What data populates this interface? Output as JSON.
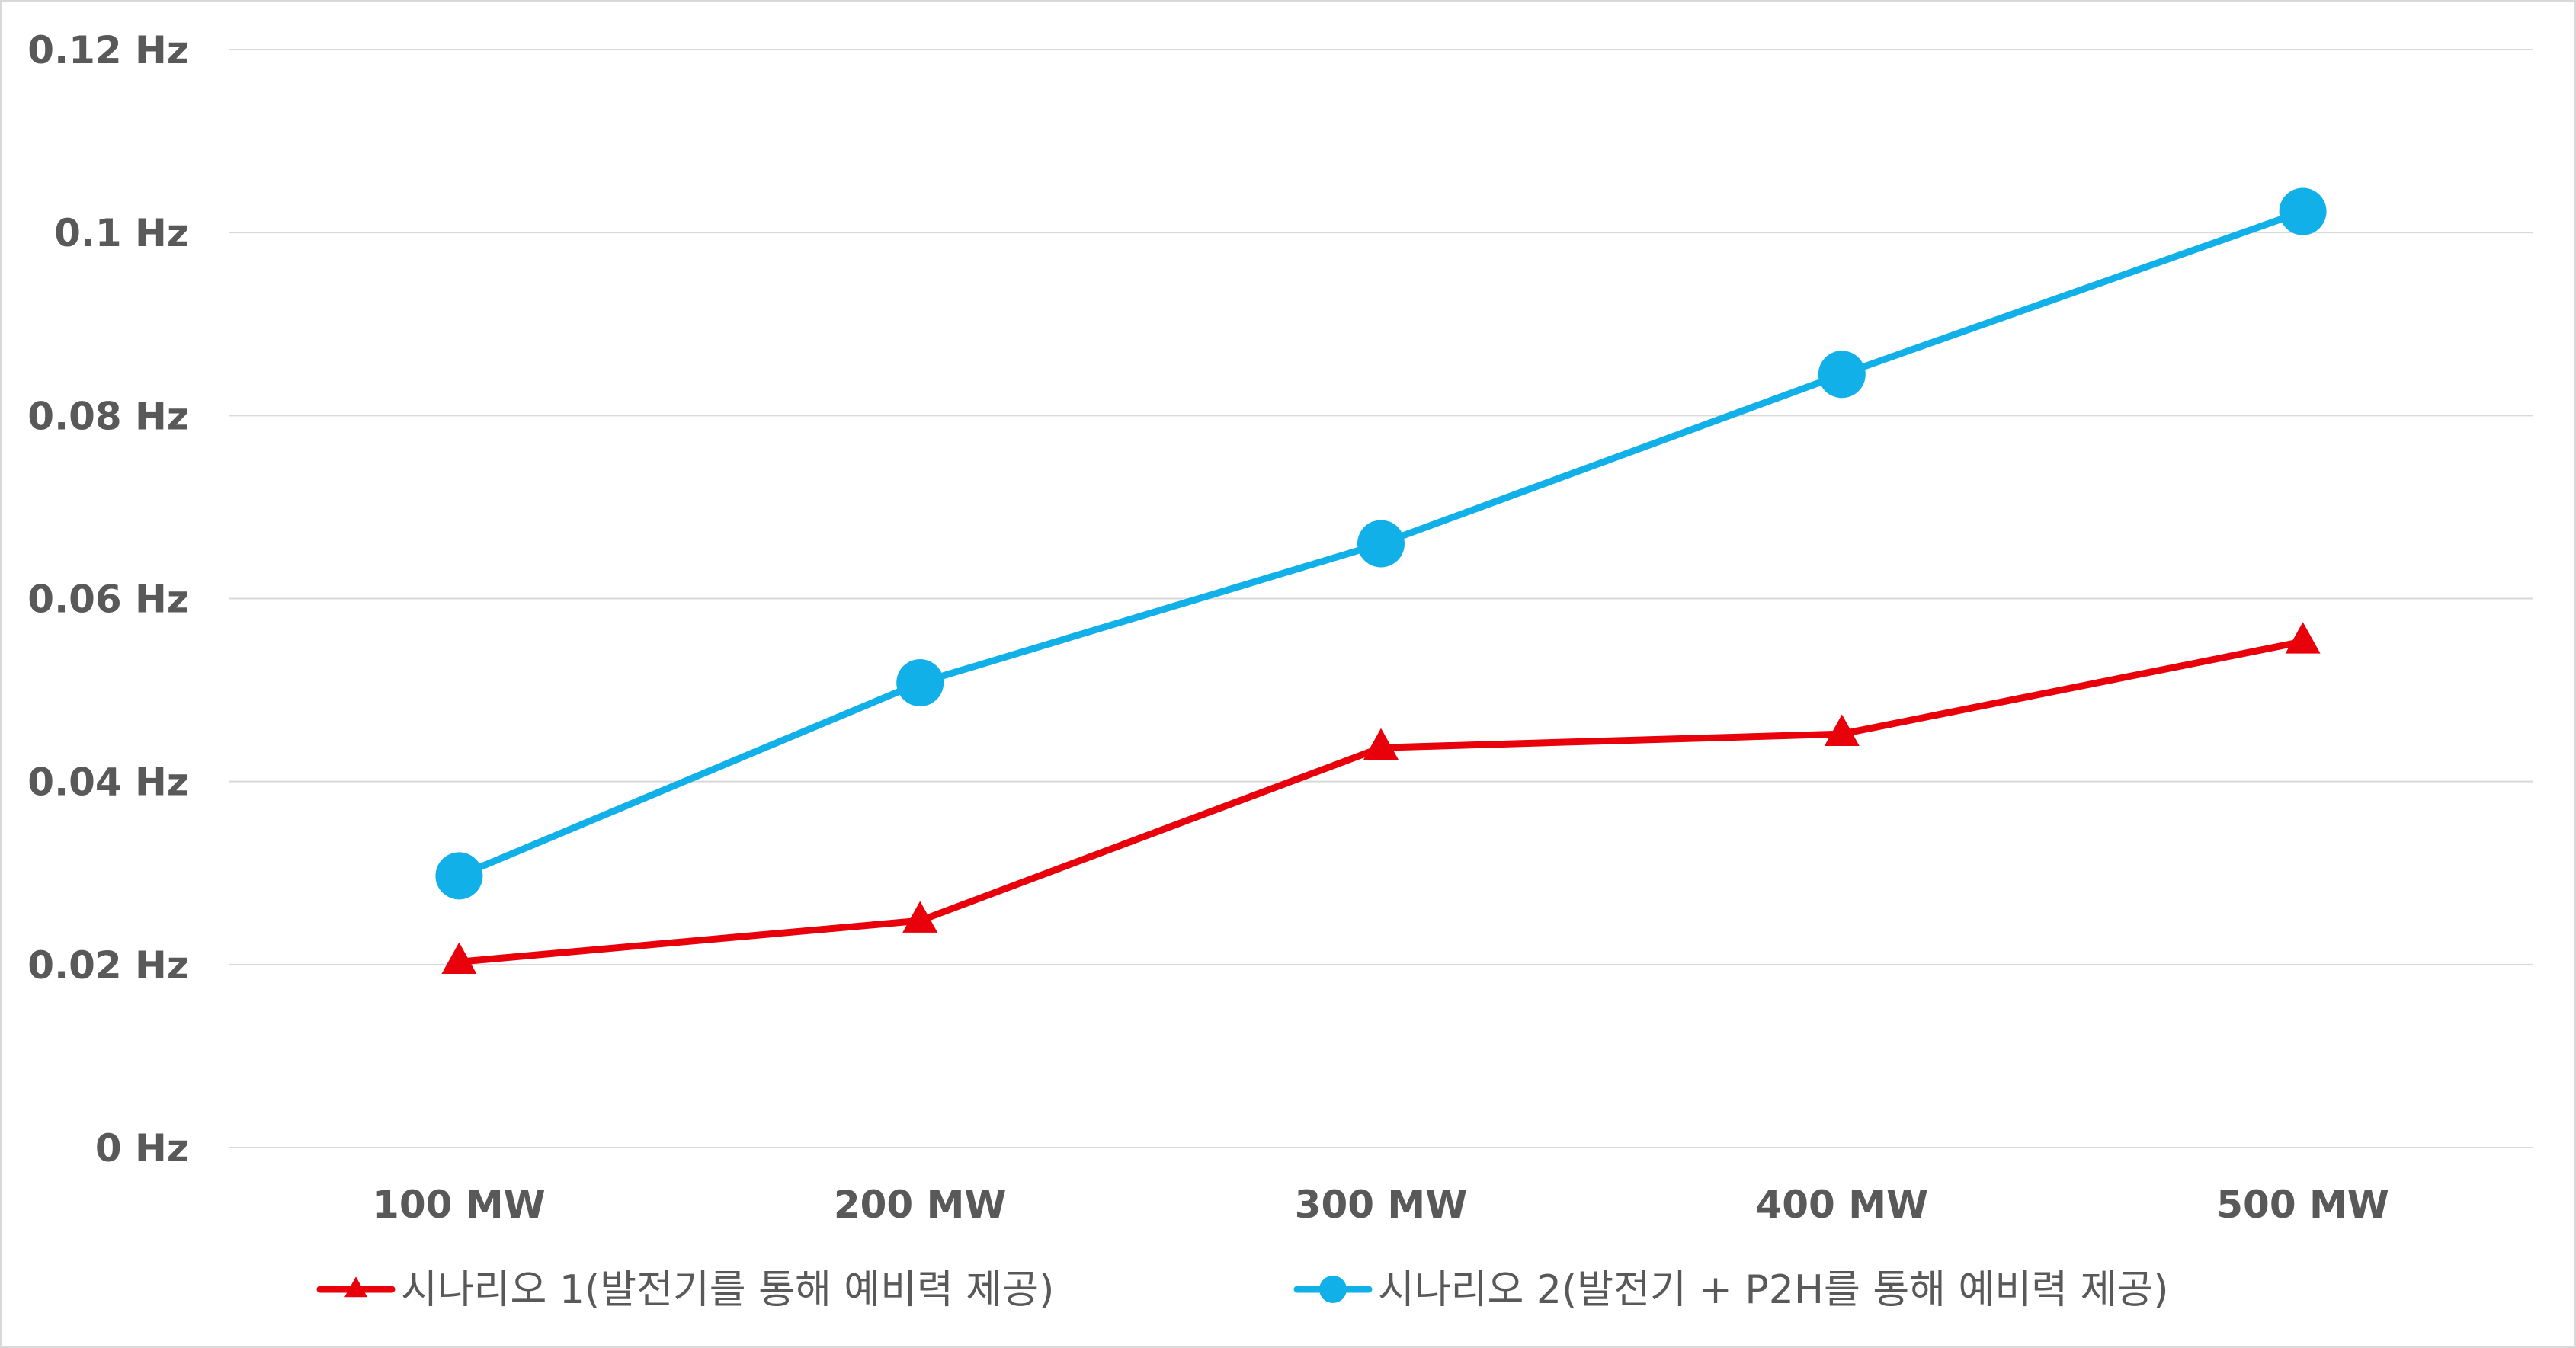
{
  "chart_data": {
    "type": "line",
    "categories": [
      "100 MW",
      "200 MW",
      "300 MW",
      "400 MW",
      "500 MW"
    ],
    "series": [
      {
        "name": "시나리오 1(발전기를 통해 예비력 제공)",
        "values": [
          0.0203,
          0.0248,
          0.0437,
          0.0452,
          0.0553
        ],
        "color": "#e8000b",
        "marker": "triangle"
      },
      {
        "name": "시나리오 2(발전기 + P2H를 통해 예비력 제공)",
        "values": [
          0.0297,
          0.0508,
          0.066,
          0.0845,
          0.1023
        ],
        "color": "#11b0e8",
        "marker": "circle"
      }
    ],
    "yticks": [
      "0 Hz",
      "0.02 Hz",
      "0.04 Hz",
      "0.06 Hz",
      "0.08 Hz",
      "0.1 Hz",
      "0.12 Hz"
    ],
    "ylim": [
      0,
      0.12
    ],
    "ylabel": "",
    "xlabel": "",
    "title": "",
    "grid": true,
    "legend_position": "bottom",
    "gridline_color": "#d9d9d9"
  }
}
